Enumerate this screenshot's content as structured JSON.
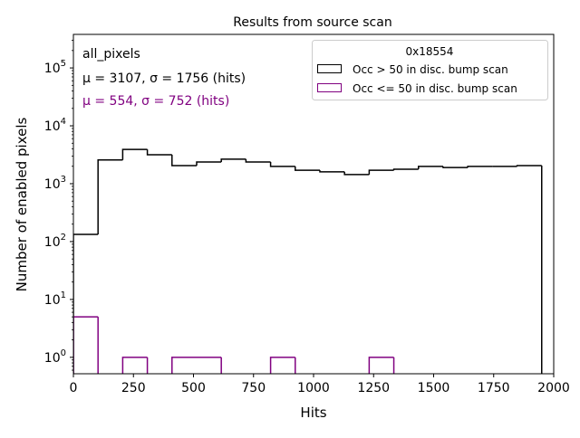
{
  "chart_data": {
    "type": "histogram",
    "title": "Results from source scan",
    "xlabel": "Hits",
    "ylabel": "Number of enabled pixels",
    "xlim": [
      0,
      2000
    ],
    "ylim": [
      0.52,
      380000
    ],
    "yscale": "log",
    "xticks": [
      "0",
      "250",
      "500",
      "750",
      "1000",
      "1250",
      "1500",
      "1750",
      "2000"
    ],
    "xtick_values": [
      0,
      250,
      500,
      750,
      1000,
      1250,
      1500,
      1750,
      2000
    ],
    "yticks": [
      "10^0",
      "10^1",
      "10^2",
      "10^3",
      "10^4",
      "10^5"
    ],
    "ytick_exponents": [
      0,
      1,
      2,
      3,
      4,
      5
    ],
    "bin_edges": [
      0,
      102.6,
      205.3,
      307.9,
      410.5,
      513.2,
      615.8,
      718.4,
      821.1,
      923.7,
      1026.3,
      1128.9,
      1231.6,
      1334.2,
      1436.8,
      1539.5,
      1642.1,
      1744.7,
      1847.4,
      1950
    ],
    "series": [
      {
        "name": "Occ > 50 in disc. bump scan",
        "color": "#000000",
        "values": [
          133,
          2570,
          3900,
          3170,
          2050,
          2370,
          2650,
          2370,
          1990,
          1710,
          1600,
          1440,
          1710,
          1780,
          1990,
          1900,
          1990,
          1990,
          2050
        ]
      },
      {
        "name": "Occ <= 50 in disc. bump scan",
        "color": "#800080",
        "values": [
          5,
          0,
          1,
          0,
          1,
          1,
          0,
          0,
          1,
          0,
          0,
          0,
          1,
          0,
          0,
          0,
          0,
          0,
          0
        ]
      }
    ],
    "legend": {
      "title": "0x18554",
      "placement": "top-right"
    },
    "annotations": [
      {
        "text": "all_pixels",
        "color": "#000000"
      },
      {
        "text": "μ = 3107, σ = 1756 (hits)",
        "color": "#000000"
      },
      {
        "text": "μ = 554, σ = 752 (hits)",
        "color": "#800080"
      }
    ],
    "grid": false
  }
}
